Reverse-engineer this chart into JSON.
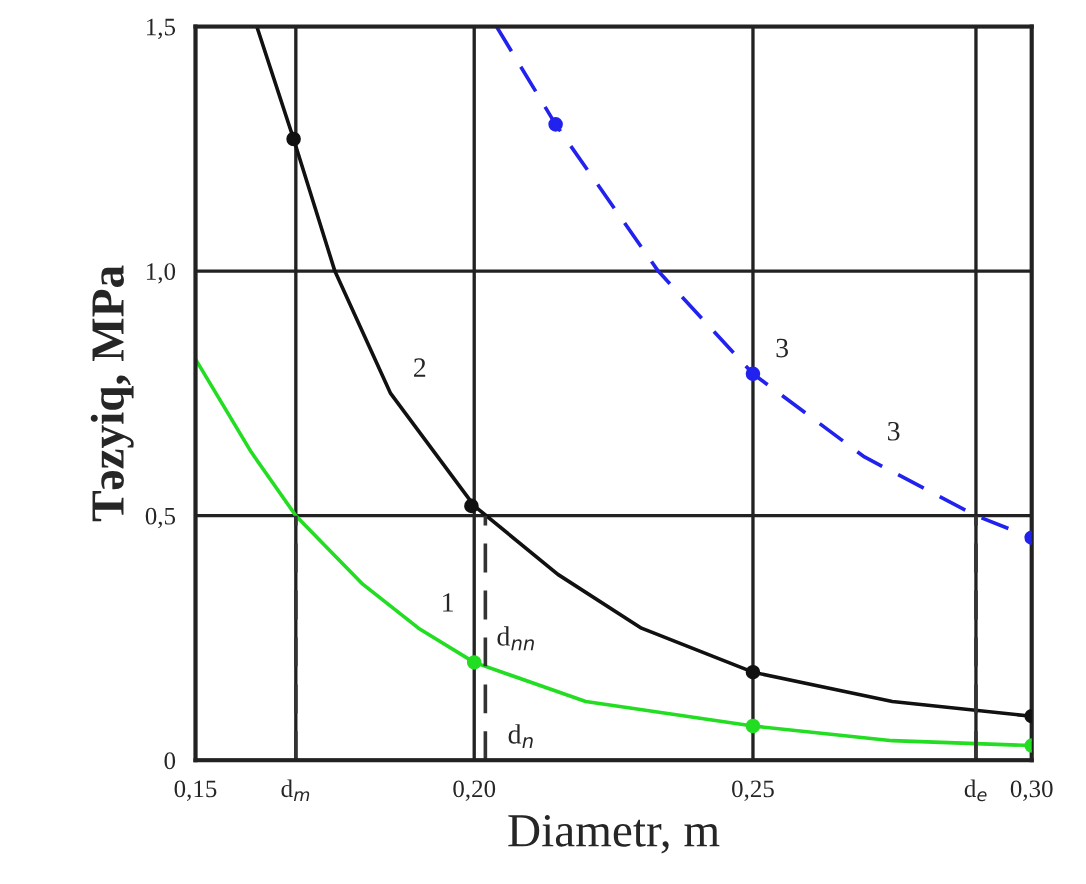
{
  "chart_data": {
    "type": "line",
    "xlabel": "Diametr, m",
    "ylabel": "Təzyiq, MPa",
    "xlim": [
      0.15,
      0.3
    ],
    "ylim": [
      0,
      1.5
    ],
    "xticks": [
      {
        "value": 0.15,
        "label": "0,15"
      },
      {
        "value": 0.168,
        "label": "d$_{m}$"
      },
      {
        "value": 0.2,
        "label": "0,20"
      },
      {
        "value": 0.25,
        "label": "0,25"
      },
      {
        "value": 0.29,
        "label": "d$_{e}$"
      },
      {
        "value": 0.3,
        "label": "0,30"
      }
    ],
    "yticks": [
      {
        "value": 0,
        "label": "0"
      },
      {
        "value": 0.5,
        "label": "0,5"
      },
      {
        "value": 1.0,
        "label": "1,0"
      },
      {
        "value": 1.5,
        "label": "1,5"
      }
    ],
    "grid": true,
    "series": [
      {
        "color": "#22dd22",
        "line_style": "solid",
        "x": [
          0.15,
          0.16,
          0.168,
          0.18,
          0.19,
          0.2,
          0.22,
          0.25,
          0.275,
          0.3
        ],
        "values": [
          0.82,
          0.63,
          0.5,
          0.36,
          0.27,
          0.2,
          0.12,
          0.07,
          0.04,
          0.03
        ]
      },
      {
        "color": "#111111",
        "line_style": "solid",
        "x": [
          0.161,
          0.1676,
          0.175,
          0.185,
          0.2,
          0.215,
          0.23,
          0.25,
          0.275,
          0.3
        ],
        "values": [
          1.5,
          1.27,
          1.0,
          0.75,
          0.52,
          0.38,
          0.27,
          0.18,
          0.12,
          0.09
        ]
      },
      {
        "color": "#2222ee",
        "line_style": "dashed",
        "x": [
          0.204,
          0.2146,
          0.233,
          0.25,
          0.27,
          0.29,
          0.3
        ],
        "values": [
          1.5,
          1.3,
          1.0,
          0.79,
          0.62,
          0.5,
          0.455
        ]
      },
      {
        "type": "scatter",
        "color": "#22dd22",
        "marker": "circle",
        "x": [
          0.2,
          0.25,
          0.3
        ],
        "values": [
          0.2,
          0.07,
          0.03
        ]
      },
      {
        "type": "scatter",
        "color": "#111111",
        "marker": "circle",
        "x": [
          0.1676,
          0.1995,
          0.25,
          0.3
        ],
        "values": [
          1.27,
          0.52,
          0.18,
          0.09
        ]
      },
      {
        "type": "scatter",
        "color": "#2222ee",
        "marker": "circle",
        "x": [
          0.2146,
          0.25,
          0.3
        ],
        "values": [
          1.3,
          0.79,
          0.455
        ]
      },
      {
        "color": "#333333",
        "line_style": "dashed",
        "x": [
          0.168,
          0.168
        ],
        "values": [
          0,
          0.5
        ]
      },
      {
        "color": "#333333",
        "line_style": "dashed",
        "x": [
          0.202,
          0.202
        ],
        "values": [
          0,
          0.5
        ]
      },
      {
        "color": "#333333",
        "line_style": "dashed",
        "x": [
          0.29,
          0.29
        ],
        "values": [
          0,
          0.5
        ]
      }
    ],
    "annotations": [
      {
        "text": "1",
        "x": 0.19,
        "y": 0.27
      },
      {
        "text": "2",
        "x": 0.185,
        "y": 0.75
      },
      {
        "text": "3",
        "x": 0.25,
        "y": 0.79
      },
      {
        "text": "3",
        "x": 0.27,
        "y": 0.62
      },
      {
        "text": "d$_{n}$",
        "x": 0.202,
        "y": 0
      },
      {
        "text": "d$_{nn}$",
        "x": 0.2,
        "y": 0.2
      }
    ]
  }
}
